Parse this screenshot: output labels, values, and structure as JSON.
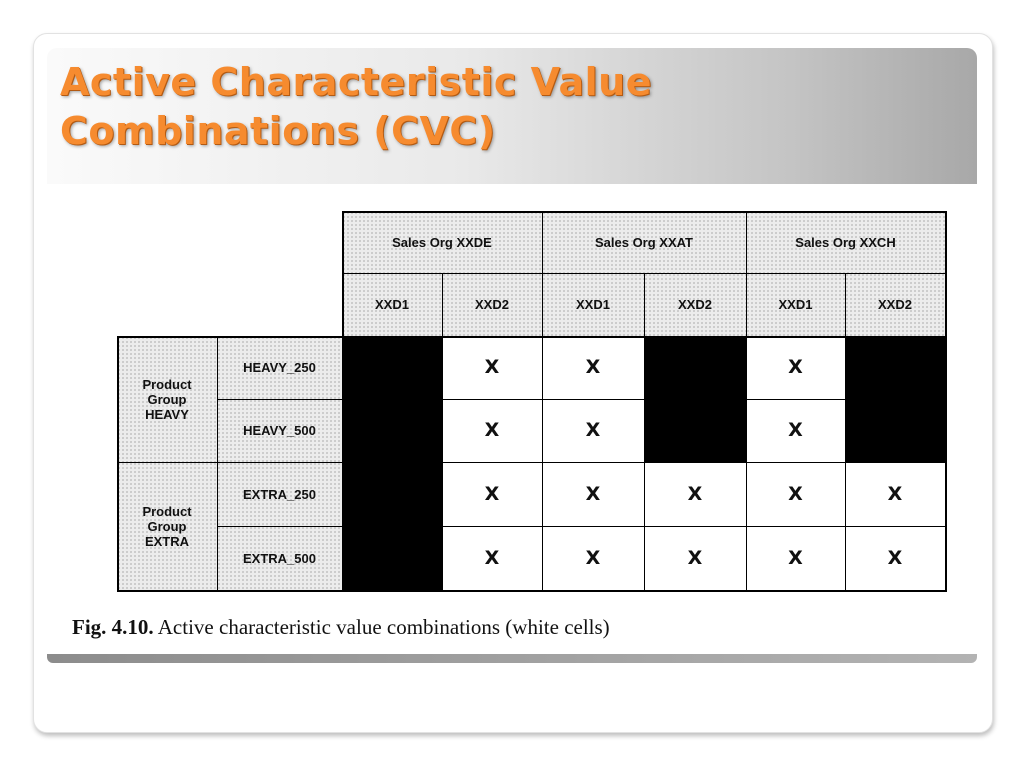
{
  "slide": {
    "title_line1": "Active Characteristic Value",
    "title_line2": "Combinations (CVC)",
    "title_color": "#f68b2f"
  },
  "table": {
    "sales_orgs": [
      "Sales Org XXDE",
      "Sales Org XXAT",
      "Sales Org XXCH"
    ],
    "channels": [
      "XXD1",
      "XXD2",
      "XXD1",
      "XXD2",
      "XXD1",
      "XXD2"
    ],
    "product_groups": [
      {
        "label_lines": [
          "Product",
          "Group",
          "HEAVY"
        ],
        "products": [
          "HEAVY_250",
          "HEAVY_500"
        ]
      },
      {
        "label_lines": [
          "Product",
          "Group",
          "EXTRA"
        ],
        "products": [
          "EXTRA_250",
          "EXTRA_500"
        ]
      }
    ],
    "marker": "X",
    "active_color": "#ffffff",
    "inactive_color": "#000000",
    "matrix": [
      [
        false,
        true,
        true,
        false,
        true,
        false
      ],
      [
        false,
        true,
        true,
        false,
        true,
        false
      ],
      [
        false,
        true,
        true,
        true,
        true,
        true
      ],
      [
        false,
        true,
        true,
        true,
        true,
        true
      ]
    ]
  },
  "caption": {
    "figure_number": "Fig. 4.10.",
    "text": "Active characteristic value combinations (white cells)"
  }
}
